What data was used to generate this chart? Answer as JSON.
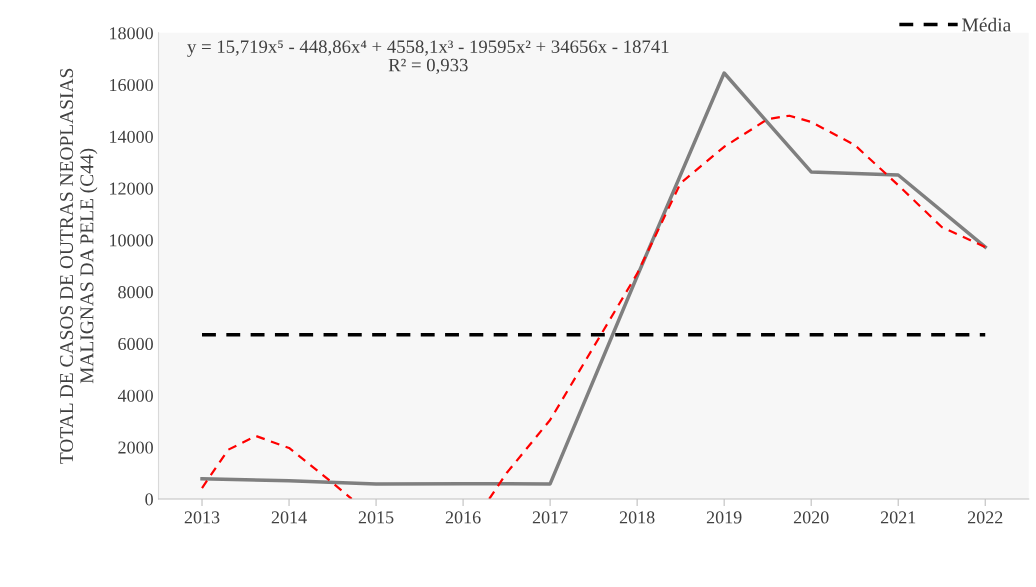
{
  "chart_data": {
    "type": "line",
    "ylabel": "TOTAL DE CASOS DE OUTRAS NEOPLASIAS\nMALIGNAS DA PELE (C44)",
    "x": [
      2013,
      2014,
      2015,
      2016,
      2017,
      2018,
      2019,
      2020,
      2021,
      2022
    ],
    "series": [
      {
        "color": "#7f7f7f",
        "values": [
          780,
          700,
          580,
          590,
          580,
          8600,
          16450,
          12630,
          12510,
          9730
        ],
        "line_style": "solid"
      },
      {
        "type": "line",
        "color": "#ff0000",
        "line_style": "dashed",
        "x": [
          2013,
          2013.3,
          2013.62,
          2014,
          2014.5,
          2014.72,
          2014.8,
          2016.3,
          2016.5,
          2017,
          2017.5,
          2018,
          2018.5,
          2019,
          2019.5,
          2019.75,
          2020,
          2020.5,
          2021,
          2021.5,
          2022
        ],
        "values": [
          420,
          1900,
          2430,
          1970,
          620,
          0,
          null,
          0,
          1000,
          3050,
          5870,
          8700,
          12200,
          13600,
          14670,
          14800,
          14560,
          13670,
          12120,
          10500,
          9730
        ]
      }
    ],
    "ref_lines": [
      {
        "axis": "y",
        "value": 6340,
        "label": "Média",
        "color": "#000000",
        "line_style": "dashed"
      }
    ],
    "xlim": [
      2012.5,
      2022.5
    ],
    "xticks": [
      2013,
      2014,
      2015,
      2016,
      2017,
      2018,
      2019,
      2020,
      2021,
      2022
    ],
    "ylim": [
      0,
      18000
    ],
    "yticks": [
      0,
      2000,
      4000,
      6000,
      8000,
      10000,
      12000,
      14000,
      16000,
      18000
    ],
    "grid": false,
    "legend": "top right",
    "marker": "none",
    "annotations": [
      {
        "text": "y = 15,719x⁵ - 448,86x⁴ + 4558,1x³ - 19595x² + 34656x - 18741\nR² = 0,933"
      }
    ]
  }
}
